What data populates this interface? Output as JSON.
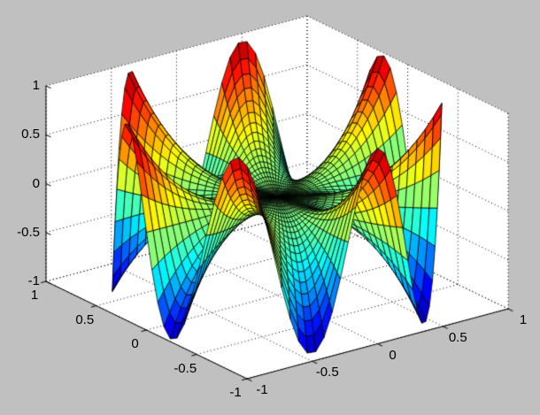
{
  "figure": {
    "background_color": "#c0c0c0",
    "axes_background_color": "#ffffff",
    "grid_color": "#000000",
    "grid_style": "dotted",
    "axis_line_color": "#000000",
    "tick_label_color": "#000000",
    "mesh_edge_color": "#000000"
  },
  "chart_data": {
    "type": "surface",
    "title": "",
    "xlabel": "",
    "ylabel": "",
    "zlabel": "",
    "description": "MATLAB-style 3-D surf plot of a 7-lobed polar harmonic surface on the unit disk, flat shading with jet colormap and black mesh edges, dotted grid on gray figure background",
    "function": "z = r^3 * sin(7*theta)",
    "coordinate_system": "polar unit disk, x = r*cos(theta), y = r*sin(theta)",
    "colormap": "jet",
    "colormap_levels": 64,
    "color_limits": [
      -1,
      1
    ],
    "shading": "flat",
    "view": {
      "azimuth_deg": -37.5,
      "elevation_deg": 30,
      "projection": "orthographic"
    },
    "mesh": {
      "theta_start_deg": 0,
      "theta_end_deg": 360,
      "theta_step_deg": 3,
      "r_min": 0,
      "r_max": 1,
      "r_step": 0.05,
      "radial_exponent": 3,
      "angular_lobes": 7,
      "amplitude": 1
    },
    "axes": {
      "x": {
        "range": [
          -1,
          1
        ],
        "ticks": [
          -1,
          -0.5,
          0,
          0.5,
          1
        ],
        "labels": [
          "-1",
          "-0.5",
          "0",
          "0.5",
          "1"
        ]
      },
      "y": {
        "range": [
          -1,
          1
        ],
        "ticks": [
          -1,
          -0.5,
          0,
          0.5,
          1
        ],
        "labels": [
          "-1",
          "-0.5",
          "0",
          "0.5",
          "1"
        ]
      },
      "z": {
        "range": [
          -1,
          1
        ],
        "ticks": [
          -1,
          -0.5,
          0,
          0.5,
          1
        ],
        "labels": [
          "-1",
          "-0.5",
          "0",
          "0.5",
          "1"
        ]
      }
    },
    "grid": {
      "visible": true,
      "line_style": "dotted"
    }
  }
}
